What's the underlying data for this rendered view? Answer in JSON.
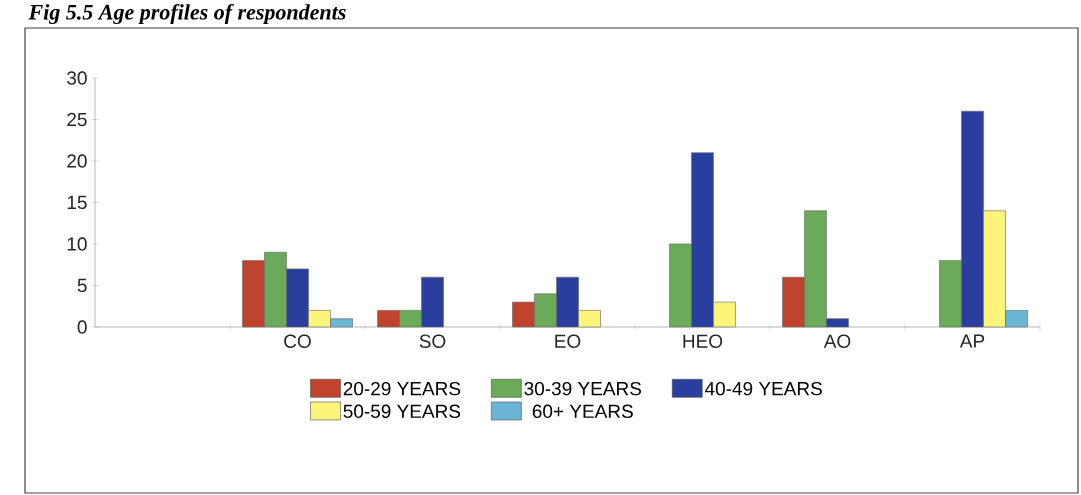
{
  "chart_data": {
    "type": "bar",
    "title": "Fig 5.5 Age profiles of respondents",
    "categories": [
      null,
      "CO",
      "SO",
      "EO",
      "HEO",
      "AO",
      "AP"
    ],
    "series": [
      {
        "name": "20-29 YEARS",
        "color": "#c0432e",
        "values": [
          null,
          8,
          2,
          3,
          null,
          6,
          null
        ]
      },
      {
        "name": "30-39 YEARS",
        "color": "#6aaa58",
        "values": [
          null,
          9,
          2,
          4,
          10,
          14,
          8
        ]
      },
      {
        "name": "40-49 YEARS",
        "color": "#2a3e9e",
        "values": [
          null,
          7,
          6,
          6,
          21,
          1,
          26
        ]
      },
      {
        "name": "50-59 YEARS",
        "color": "#fdf57a",
        "values": [
          null,
          2,
          null,
          2,
          3,
          null,
          14
        ]
      },
      {
        "name": "60+ YEARS",
        "color": "#6ab4d6",
        "values": [
          null,
          1,
          null,
          null,
          null,
          null,
          2
        ]
      }
    ],
    "ylim": [
      0,
      30
    ],
    "yticks": [
      0,
      5,
      10,
      15,
      20,
      25,
      30
    ],
    "grid": false,
    "legend": "bottom"
  }
}
